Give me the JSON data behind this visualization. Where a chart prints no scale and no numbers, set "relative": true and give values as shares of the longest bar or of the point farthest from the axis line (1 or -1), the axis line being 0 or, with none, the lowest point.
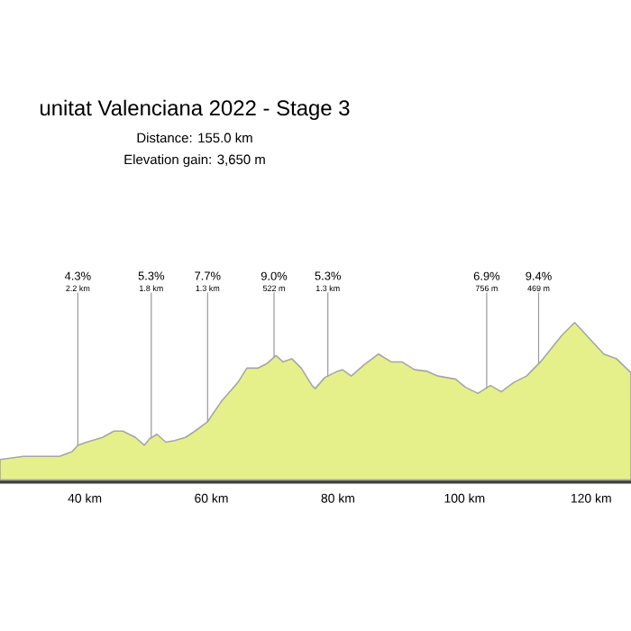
{
  "chart_data": {
    "type": "area",
    "title": "unitat Valenciana 2022 - Stage 3",
    "subtitle": "Distance: 155.0 km",
    "relative": true,
    "x": [
      26.6,
      30.3,
      36.0,
      38.0,
      38.9,
      40.3,
      42.8,
      44.6,
      46.0,
      48.0,
      49.4,
      50.2,
      51.4,
      52.8,
      54.2,
      55.9,
      57.4,
      59.4,
      61.6,
      64.2,
      65.6,
      67.3,
      68.8,
      70.2,
      71.3,
      72.7,
      74.2,
      75.9,
      76.4,
      77.9,
      79.9,
      80.7,
      82.1,
      84.1,
      86.4,
      88.4,
      90.1,
      92.1,
      94.1,
      95.8,
      98.6,
      100.1,
      102.1,
      104.1,
      105.8,
      107.8,
      109.8,
      112.0,
      115.4,
      117.4,
      119.7,
      122.0,
      124.0,
      126.3
    ],
    "series": [
      {
        "color": "#e6f08a",
        "values": [
          0.13,
          0.15,
          0.15,
          0.18,
          0.22,
          0.24,
          0.27,
          0.31,
          0.31,
          0.27,
          0.22,
          0.26,
          0.29,
          0.24,
          0.25,
          0.27,
          0.31,
          0.37,
          0.5,
          0.62,
          0.71,
          0.71,
          0.74,
          0.79,
          0.75,
          0.77,
          0.71,
          0.6,
          0.58,
          0.65,
          0.69,
          0.7,
          0.66,
          0.73,
          0.8,
          0.75,
          0.75,
          0.7,
          0.69,
          0.66,
          0.64,
          0.59,
          0.55,
          0.6,
          0.56,
          0.62,
          0.66,
          0.75,
          0.92,
          1.0,
          0.9,
          0.8,
          0.77,
          0.68
        ]
      }
    ],
    "xlim": [
      26.6,
      126.3
    ],
    "xticks": [
      {
        "value": 40,
        "label": "40 km"
      },
      {
        "value": 60,
        "label": "60 km"
      },
      {
        "value": 80,
        "label": "80 km"
      },
      {
        "value": 100,
        "label": "100 km"
      },
      {
        "value": 120,
        "label": "120 km"
      }
    ],
    "annotations": [
      "Elevation gain: 3,650 m",
      "4.3%",
      {
        "text": "2.2 km",
        "x": 38.9,
        "y": 0.22
      },
      "5.3%",
      {
        "text": "1.8 km",
        "x": 50.5,
        "y": 0.27
      },
      "7.7%",
      {
        "text": "1.3 km",
        "x": 59.4,
        "y": 0.37
      },
      "9.0%",
      {
        "text": "522 m",
        "x": 69.9,
        "y": 0.78
      },
      "5.3%",
      {
        "text": "1.3 km",
        "x": 78.4,
        "y": 0.66
      },
      "6.9%",
      {
        "text": "756 m",
        "x": 103.5,
        "y": 0.58
      },
      "9.4%",
      {
        "text": "469 m",
        "x": 111.7,
        "y": 0.74
      }
    ]
  }
}
